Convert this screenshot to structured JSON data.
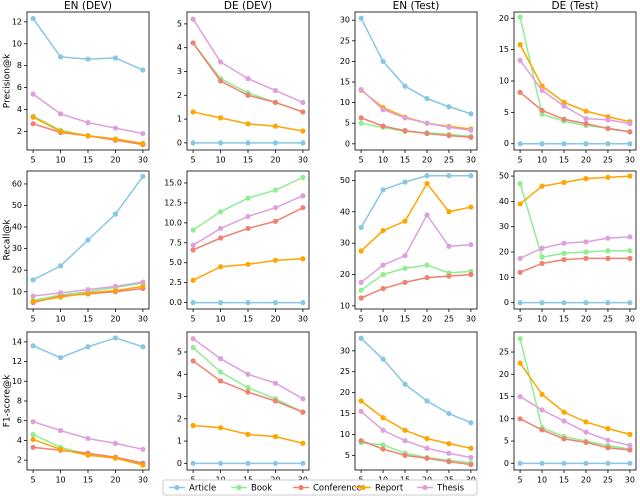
{
  "chart_data": [
    {
      "type": "line",
      "title": "EN (DEV)",
      "ylabel": "Precision@k",
      "categories": [
        5,
        10,
        15,
        20,
        30
      ],
      "ylim": [
        0.3,
        12.9
      ],
      "yticks": [
        2,
        4,
        6,
        8,
        10,
        12
      ],
      "series": [
        {
          "name": "Article",
          "color": "#87c7e3",
          "values": [
            12.3,
            8.8,
            8.6,
            8.7,
            7.6
          ]
        },
        {
          "name": "Book",
          "color": "#90ee90",
          "values": [
            3.4,
            2.1,
            1.6,
            1.3,
            0.9
          ]
        },
        {
          "name": "Conference",
          "color": "#f08070",
          "values": [
            2.7,
            1.9,
            1.6,
            1.2,
            0.8
          ]
        },
        {
          "name": "Report",
          "color": "#ffa500",
          "values": [
            3.3,
            2.0,
            1.6,
            1.3,
            0.9
          ]
        },
        {
          "name": "Thesis",
          "color": "#dda0dd",
          "values": [
            5.4,
            3.6,
            2.8,
            2.3,
            1.8
          ]
        }
      ]
    },
    {
      "type": "line",
      "title": "DE (DEV)",
      "categories": [
        5,
        10,
        15,
        20,
        30
      ],
      "ylim": [
        -0.3,
        5.5
      ],
      "yticks": [
        0,
        1,
        2,
        3,
        4,
        5
      ],
      "series": [
        {
          "name": "Article",
          "color": "#87c7e3",
          "values": [
            0,
            0,
            0,
            0,
            0
          ]
        },
        {
          "name": "Book",
          "color": "#90ee90",
          "values": [
            4.2,
            2.7,
            2.1,
            1.7,
            1.3
          ]
        },
        {
          "name": "Conference",
          "color": "#f08070",
          "values": [
            4.2,
            2.6,
            2.0,
            1.7,
            1.3
          ]
        },
        {
          "name": "Report",
          "color": "#ffa500",
          "values": [
            1.3,
            1.05,
            0.8,
            0.7,
            0.5
          ]
        },
        {
          "name": "Thesis",
          "color": "#dda0dd",
          "values": [
            5.2,
            3.4,
            2.7,
            2.2,
            1.7
          ]
        }
      ]
    },
    {
      "type": "line",
      "title": "EN (Test)",
      "categories": [
        5,
        10,
        15,
        20,
        25,
        30
      ],
      "ylim": [
        -1.5,
        32
      ],
      "yticks": [
        0,
        5,
        10,
        15,
        20,
        25,
        30
      ],
      "series": [
        {
          "name": "Article",
          "color": "#87c7e3",
          "values": [
            30.5,
            20,
            14,
            11,
            9,
            7.3
          ]
        },
        {
          "name": "Book",
          "color": "#90ee90",
          "values": [
            5,
            4,
            3,
            2.7,
            2.3,
            1.8
          ]
        },
        {
          "name": "Conference",
          "color": "#f08070",
          "values": [
            6.3,
            4.3,
            3.2,
            2.5,
            2,
            1.6
          ]
        },
        {
          "name": "Report",
          "color": "#ffa500",
          "values": [
            13,
            8.8,
            6.5,
            5,
            4.2,
            3.6
          ]
        },
        {
          "name": "Thesis",
          "color": "#dda0dd",
          "values": [
            13.2,
            8.3,
            6.3,
            5,
            4,
            3.3
          ]
        }
      ]
    },
    {
      "type": "line",
      "title": "DE (Test)",
      "categories": [
        5,
        10,
        15,
        20,
        25,
        30
      ],
      "ylim": [
        -1,
        21
      ],
      "yticks": [
        0,
        5,
        10,
        15,
        20
      ],
      "series": [
        {
          "name": "Article",
          "color": "#87c7e3",
          "values": [
            0,
            0,
            0,
            0,
            0,
            0
          ]
        },
        {
          "name": "Book",
          "color": "#90ee90",
          "values": [
            20.2,
            4.7,
            3.6,
            2.9,
            2.5,
            1.9
          ]
        },
        {
          "name": "Conference",
          "color": "#f08070",
          "values": [
            8.2,
            5.3,
            3.9,
            3.2,
            2.4,
            1.9
          ]
        },
        {
          "name": "Report",
          "color": "#ffa500",
          "values": [
            15.8,
            9.2,
            6.6,
            5.2,
            4.3,
            3.5
          ]
        },
        {
          "name": "Thesis",
          "color": "#dda0dd",
          "values": [
            13.3,
            8.5,
            6,
            4,
            3.8,
            3.2
          ]
        }
      ]
    },
    {
      "type": "line",
      "ylabel": "Recall@k",
      "categories": [
        5,
        10,
        15,
        20,
        30
      ],
      "ylim": [
        2,
        66
      ],
      "yticks": [
        10,
        20,
        30,
        40,
        50,
        60
      ],
      "series": [
        {
          "name": "Article",
          "color": "#87c7e3",
          "values": [
            15.5,
            22,
            34,
            46,
            63.5
          ]
        },
        {
          "name": "Book",
          "color": "#90ee90",
          "values": [
            6,
            8.5,
            10,
            12,
            14
          ]
        },
        {
          "name": "Conference",
          "color": "#f08070",
          "values": [
            5,
            8,
            9,
            10,
            11.5
          ]
        },
        {
          "name": "Report",
          "color": "#ffa500",
          "values": [
            5.5,
            7.5,
            9.5,
            10.5,
            12.5
          ]
        },
        {
          "name": "Thesis",
          "color": "#dda0dd",
          "values": [
            8,
            9.5,
            11,
            12.5,
            14.5
          ]
        }
      ]
    },
    {
      "type": "line",
      "categories": [
        5,
        10,
        15,
        20,
        30
      ],
      "ylim": [
        -0.8,
        16.5
      ],
      "yticks": [
        {
          "value": 0,
          "label": "0.0"
        },
        {
          "value": 2.5,
          "label": "2.5"
        },
        {
          "value": 5,
          "label": "5.0"
        },
        {
          "value": 7.5,
          "label": "7.5"
        },
        {
          "value": 10,
          "label": "10.0"
        },
        {
          "value": 12.5,
          "label": "12.5"
        },
        {
          "value": 15,
          "label": "15.0"
        }
      ],
      "series": [
        {
          "name": "Article",
          "color": "#87c7e3",
          "values": [
            0,
            0,
            0,
            0,
            0
          ]
        },
        {
          "name": "Book",
          "color": "#90ee90",
          "values": [
            9.1,
            11.4,
            13.1,
            14.1,
            15.7
          ]
        },
        {
          "name": "Conference",
          "color": "#f08070",
          "values": [
            6.6,
            8.1,
            9.3,
            10.2,
            11.9
          ]
        },
        {
          "name": "Report",
          "color": "#ffa500",
          "values": [
            2.8,
            4.5,
            4.8,
            5.3,
            5.5
          ]
        },
        {
          "name": "Thesis",
          "color": "#dda0dd",
          "values": [
            7.2,
            9.3,
            10.8,
            11.9,
            13.4
          ]
        }
      ]
    },
    {
      "type": "line",
      "categories": [
        5,
        10,
        15,
        20,
        25,
        30
      ],
      "ylim": [
        9,
        53
      ],
      "yticks": [
        10,
        20,
        30,
        40,
        50
      ],
      "series": [
        {
          "name": "Article",
          "color": "#87c7e3",
          "values": [
            35,
            47,
            49.5,
            51.5,
            51.5,
            51.5
          ]
        },
        {
          "name": "Book",
          "color": "#90ee90",
          "values": [
            15,
            20,
            22,
            23,
            20.5,
            21
          ]
        },
        {
          "name": "Conference",
          "color": "#f08070",
          "values": [
            12.5,
            15.5,
            17.5,
            19,
            19.5,
            20
          ]
        },
        {
          "name": "Report",
          "color": "#ffa500",
          "values": [
            27.5,
            34,
            37,
            49,
            40,
            41.5
          ]
        },
        {
          "name": "Thesis",
          "color": "#dda0dd",
          "values": [
            17.5,
            23,
            26,
            39,
            29,
            29.5
          ]
        }
      ]
    },
    {
      "type": "line",
      "categories": [
        5,
        10,
        15,
        20,
        25,
        30
      ],
      "ylim": [
        -2.5,
        52
      ],
      "yticks": [
        0,
        10,
        20,
        30,
        40,
        50
      ],
      "series": [
        {
          "name": "Article",
          "color": "#87c7e3",
          "values": [
            0,
            0,
            0,
            0,
            0,
            0
          ]
        },
        {
          "name": "Book",
          "color": "#90ee90",
          "values": [
            47,
            18,
            19.5,
            20,
            20.5,
            20.5
          ]
        },
        {
          "name": "Conference",
          "color": "#f08070",
          "values": [
            12,
            15.5,
            17,
            17.5,
            17.5,
            17.5
          ]
        },
        {
          "name": "Report",
          "color": "#ffa500",
          "values": [
            39,
            46,
            47.5,
            49,
            49.5,
            50
          ]
        },
        {
          "name": "Thesis",
          "color": "#dda0dd",
          "values": [
            17.5,
            21.5,
            23.5,
            24,
            25.5,
            26
          ]
        }
      ]
    },
    {
      "type": "line",
      "ylabel": "F1-score@k",
      "categories": [
        5,
        10,
        15,
        20,
        30
      ],
      "ylim": [
        1,
        15
      ],
      "yticks": [
        2,
        4,
        6,
        8,
        10,
        12,
        14
      ],
      "series": [
        {
          "name": "Article",
          "color": "#87c7e3",
          "values": [
            13.6,
            12.4,
            13.5,
            14.4,
            13.5
          ]
        },
        {
          "name": "Book",
          "color": "#90ee90",
          "values": [
            4.6,
            3.3,
            2.6,
            2.2,
            1.6
          ]
        },
        {
          "name": "Conference",
          "color": "#f08070",
          "values": [
            3.3,
            3.0,
            2.7,
            2.3,
            1.7
          ]
        },
        {
          "name": "Report",
          "color": "#ffa500",
          "values": [
            4.1,
            3.1,
            2.5,
            2.2,
            1.5
          ]
        },
        {
          "name": "Thesis",
          "color": "#dda0dd",
          "values": [
            5.9,
            5.0,
            4.2,
            3.7,
            3.1
          ]
        }
      ]
    },
    {
      "type": "line",
      "categories": [
        5,
        10,
        15,
        20,
        30
      ],
      "ylim": [
        -0.3,
        5.9
      ],
      "yticks": [
        0,
        1,
        2,
        3,
        4,
        5
      ],
      "series": [
        {
          "name": "Article",
          "color": "#87c7e3",
          "values": [
            0,
            0,
            0,
            0,
            0
          ]
        },
        {
          "name": "Book",
          "color": "#90ee90",
          "values": [
            5.2,
            4.1,
            3.4,
            2.9,
            2.3
          ]
        },
        {
          "name": "Conference",
          "color": "#f08070",
          "values": [
            4.6,
            3.7,
            3.2,
            2.8,
            2.3
          ]
        },
        {
          "name": "Report",
          "color": "#ffa500",
          "values": [
            1.7,
            1.6,
            1.3,
            1.2,
            0.9
          ]
        },
        {
          "name": "Thesis",
          "color": "#dda0dd",
          "values": [
            5.6,
            4.7,
            4.0,
            3.6,
            2.9
          ]
        }
      ]
    },
    {
      "type": "line",
      "categories": [
        5,
        10,
        15,
        20,
        25,
        30
      ],
      "ylim": [
        1.5,
        34.5
      ],
      "yticks": [
        5,
        10,
        15,
        20,
        25,
        30
      ],
      "series": [
        {
          "name": "Article",
          "color": "#87c7e3",
          "values": [
            33,
            28,
            22,
            18,
            15,
            12.8
          ]
        },
        {
          "name": "Book",
          "color": "#90ee90",
          "values": [
            8,
            7.5,
            5.5,
            4.5,
            3.8,
            3.2
          ]
        },
        {
          "name": "Conference",
          "color": "#f08070",
          "values": [
            8.5,
            6.5,
            5,
            4.3,
            3.5,
            2.8
          ]
        },
        {
          "name": "Report",
          "color": "#ffa500",
          "values": [
            18,
            14,
            11,
            9,
            7.8,
            6.7
          ]
        },
        {
          "name": "Thesis",
          "color": "#dda0dd",
          "values": [
            15.5,
            11,
            8.5,
            6.7,
            5.5,
            4.5
          ]
        }
      ]
    },
    {
      "type": "line",
      "categories": [
        5,
        10,
        15,
        20,
        25,
        30
      ],
      "ylim": [
        -1.5,
        29.5
      ],
      "yticks": [
        0,
        5,
        10,
        15,
        20,
        25
      ],
      "series": [
        {
          "name": "Article",
          "color": "#87c7e3",
          "values": [
            0,
            0,
            0,
            0,
            0,
            0
          ]
        },
        {
          "name": "Book",
          "color": "#90ee90",
          "values": [
            28,
            8,
            6,
            5,
            4,
            3.2
          ]
        },
        {
          "name": "Conference",
          "color": "#f08070",
          "values": [
            10,
            7.5,
            5.5,
            4.7,
            3.5,
            3
          ]
        },
        {
          "name": "Report",
          "color": "#ffa500",
          "values": [
            22.5,
            15.5,
            11.5,
            9.3,
            7.8,
            6.5
          ]
        },
        {
          "name": "Thesis",
          "color": "#dda0dd",
          "values": [
            15,
            12,
            9.5,
            7,
            5.2,
            4
          ]
        }
      ]
    }
  ]
}
